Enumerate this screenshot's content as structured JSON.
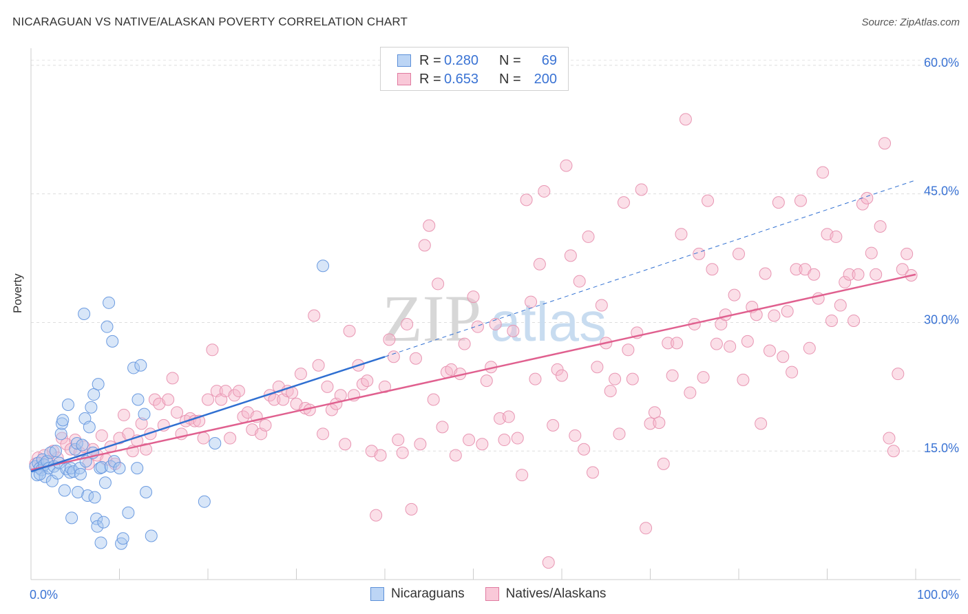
{
  "header": {
    "title": "NICARAGUAN VS NATIVE/ALASKAN POVERTY CORRELATION CHART",
    "source": "Source: ZipAtlas.com"
  },
  "watermark": {
    "zip": "ZIP",
    "atlas": "atlas"
  },
  "legend": {
    "r_label": "R =",
    "n_label": "N =",
    "series": [
      {
        "name": "Nicaraguans",
        "r": "0.280",
        "n": "69",
        "fill": "#a8c8f0",
        "stroke": "#5b8fd8"
      },
      {
        "name": "Natives/Alaskans",
        "r": "0.653",
        "n": "200",
        "fill": "#f7b8cc",
        "stroke": "#e07aa0"
      }
    ]
  },
  "colors": {
    "blue_line": "#2f6fd1",
    "pink_line": "#e0608f",
    "axis_text": "#3a73d4",
    "grid": "#dddddd"
  },
  "chart_data": {
    "type": "scatter",
    "title": "NICARAGUAN VS NATIVE/ALASKAN POVERTY CORRELATION CHART",
    "xlabel": "",
    "ylabel": "Poverty",
    "xlim": [
      0,
      100
    ],
    "ylim": [
      0,
      62
    ],
    "x_tick_labels": [
      "0.0%",
      "100.0%"
    ],
    "y_ticks": [
      15,
      30,
      45,
      60
    ],
    "y_tick_labels": [
      "15.0%",
      "30.0%",
      "45.0%",
      "60.0%"
    ],
    "grid": true,
    "legend_position": "top-center",
    "series": [
      {
        "name": "Nicaraguans",
        "r": 0.28,
        "n": 69,
        "trend": {
          "x0": 0,
          "y0": 12.6,
          "x1": 40,
          "y1": 26.0,
          "dashed_to_x": 100,
          "dashed_to_y": 46.6
        },
        "points": [
          [
            0.5,
            13.2
          ],
          [
            0.7,
            12.2
          ],
          [
            0.8,
            13.6
          ],
          [
            1.0,
            13.0
          ],
          [
            1.2,
            12.8
          ],
          [
            1.3,
            14.0
          ],
          [
            1.5,
            13.4
          ],
          [
            1.6,
            12.0
          ],
          [
            1.8,
            13.8
          ],
          [
            2.0,
            13.0
          ],
          [
            2.2,
            14.8
          ],
          [
            2.4,
            11.5
          ],
          [
            2.6,
            13.2
          ],
          [
            2.8,
            15.0
          ],
          [
            3.0,
            12.4
          ],
          [
            3.2,
            13.6
          ],
          [
            3.4,
            17.0
          ],
          [
            3.5,
            18.2
          ],
          [
            3.6,
            18.6
          ],
          [
            3.8,
            10.4
          ],
          [
            4.0,
            12.9
          ],
          [
            4.2,
            20.4
          ],
          [
            4.4,
            12.5
          ],
          [
            4.5,
            13.0
          ],
          [
            4.6,
            7.2
          ],
          [
            4.8,
            12.6
          ],
          [
            5.0,
            15.2
          ],
          [
            5.2,
            15.9
          ],
          [
            5.3,
            10.2
          ],
          [
            5.5,
            13.0
          ],
          [
            5.6,
            12.3
          ],
          [
            5.8,
            15.7
          ],
          [
            6.0,
            31.0
          ],
          [
            6.1,
            18.8
          ],
          [
            6.2,
            13.8
          ],
          [
            6.4,
            9.8
          ],
          [
            6.6,
            17.8
          ],
          [
            6.8,
            20.1
          ],
          [
            7.0,
            14.8
          ],
          [
            7.1,
            21.6
          ],
          [
            7.2,
            9.6
          ],
          [
            7.4,
            7.1
          ],
          [
            7.5,
            6.2
          ],
          [
            7.6,
            22.8
          ],
          [
            7.8,
            13.0
          ],
          [
            7.9,
            4.3
          ],
          [
            8.0,
            13.1
          ],
          [
            8.2,
            6.7
          ],
          [
            8.4,
            11.3
          ],
          [
            8.6,
            29.5
          ],
          [
            8.8,
            32.3
          ],
          [
            9.0,
            13.2
          ],
          [
            9.2,
            27.8
          ],
          [
            9.4,
            13.8
          ],
          [
            10.0,
            13.0
          ],
          [
            10.2,
            4.2
          ],
          [
            10.4,
            4.8
          ],
          [
            11.0,
            7.8
          ],
          [
            11.6,
            24.7
          ],
          [
            12.0,
            13.0
          ],
          [
            12.1,
            21.0
          ],
          [
            12.4,
            25.0
          ],
          [
            12.8,
            19.3
          ],
          [
            13.0,
            10.2
          ],
          [
            13.6,
            5.1
          ],
          [
            19.6,
            9.1
          ],
          [
            20.8,
            15.9
          ],
          [
            33.0,
            36.6
          ],
          [
            1.0,
            12.3
          ]
        ]
      },
      {
        "name": "Natives/Alaskans",
        "r": 0.653,
        "n": 200,
        "trend": {
          "x0": 0,
          "y0": 12.8,
          "x1": 100,
          "y1": 35.6
        },
        "points": [
          [
            0.5,
            13.5
          ],
          [
            0.8,
            14.2
          ],
          [
            1.0,
            13.0
          ],
          [
            1.5,
            14.5
          ],
          [
            2.0,
            13.8
          ],
          [
            2.5,
            15.0
          ],
          [
            3.0,
            14.2
          ],
          [
            3.5,
            16.5
          ],
          [
            4.0,
            15.8
          ],
          [
            4.5,
            15.2
          ],
          [
            5.0,
            16.3
          ],
          [
            5.5,
            14.8
          ],
          [
            6.0,
            15.5
          ],
          [
            6.5,
            13.5
          ],
          [
            7.0,
            15.2
          ],
          [
            7.5,
            14.5
          ],
          [
            8.0,
            16.8
          ],
          [
            8.5,
            14.0
          ],
          [
            9.0,
            15.5
          ],
          [
            9.5,
            13.5
          ],
          [
            10.0,
            16.5
          ],
          [
            10.5,
            19.2
          ],
          [
            11.0,
            17.0
          ],
          [
            11.5,
            15.0
          ],
          [
            12.0,
            16.2
          ],
          [
            12.5,
            18.2
          ],
          [
            13.0,
            15.2
          ],
          [
            13.5,
            17.0
          ],
          [
            14.0,
            21.0
          ],
          [
            14.5,
            20.5
          ],
          [
            15.0,
            18.0
          ],
          [
            15.5,
            21.0
          ],
          [
            16.0,
            23.5
          ],
          [
            16.5,
            19.5
          ],
          [
            17.0,
            17.0
          ],
          [
            17.5,
            18.5
          ],
          [
            18.0,
            18.8
          ],
          [
            18.5,
            18.5
          ],
          [
            19.0,
            18.5
          ],
          [
            19.5,
            16.5
          ],
          [
            20.0,
            21.0
          ],
          [
            20.5,
            26.8
          ],
          [
            21.0,
            22.0
          ],
          [
            21.5,
            21.0
          ],
          [
            22.0,
            22.0
          ],
          [
            22.5,
            16.5
          ],
          [
            23.0,
            21.5
          ],
          [
            23.5,
            22.0
          ],
          [
            24.0,
            19.0
          ],
          [
            24.5,
            19.5
          ],
          [
            25.0,
            17.5
          ],
          [
            25.5,
            19.0
          ],
          [
            26.0,
            17.0
          ],
          [
            26.5,
            18.0
          ],
          [
            27.0,
            21.5
          ],
          [
            27.5,
            21.0
          ],
          [
            28.0,
            22.5
          ],
          [
            28.5,
            21.0
          ],
          [
            29.0,
            22.0
          ],
          [
            29.5,
            21.8
          ],
          [
            30.0,
            20.5
          ],
          [
            30.5,
            24.0
          ],
          [
            31.0,
            20.0
          ],
          [
            31.5,
            19.8
          ],
          [
            32.0,
            30.8
          ],
          [
            32.5,
            25.0
          ],
          [
            33.0,
            17.0
          ],
          [
            33.5,
            22.5
          ],
          [
            34.0,
            19.8
          ],
          [
            34.5,
            20.5
          ],
          [
            35.0,
            21.5
          ],
          [
            35.5,
            15.8
          ],
          [
            36.0,
            29.0
          ],
          [
            36.5,
            21.5
          ],
          [
            37.0,
            25.0
          ],
          [
            37.5,
            22.8
          ],
          [
            38.0,
            23.2
          ],
          [
            38.5,
            15.0
          ],
          [
            39.0,
            7.5
          ],
          [
            39.5,
            14.5
          ],
          [
            40.0,
            22.5
          ],
          [
            40.5,
            28.0
          ],
          [
            41.0,
            26.0
          ],
          [
            41.5,
            16.3
          ],
          [
            42.0,
            14.8
          ],
          [
            42.5,
            29.8
          ],
          [
            43.0,
            8.2
          ],
          [
            43.5,
            25.8
          ],
          [
            44.0,
            15.8
          ],
          [
            44.5,
            39.0
          ],
          [
            45.0,
            41.3
          ],
          [
            45.5,
            21.0
          ],
          [
            46.0,
            34.5
          ],
          [
            46.5,
            17.8
          ],
          [
            47.0,
            24.2
          ],
          [
            47.5,
            24.5
          ],
          [
            48.0,
            14.5
          ],
          [
            48.5,
            24.0
          ],
          [
            49.0,
            27.5
          ],
          [
            49.5,
            16.3
          ],
          [
            50.0,
            33.0
          ],
          [
            50.5,
            29.5
          ],
          [
            51.0,
            15.8
          ],
          [
            51.5,
            23.2
          ],
          [
            52.0,
            24.8
          ],
          [
            52.5,
            29.8
          ],
          [
            53.0,
            18.8
          ],
          [
            53.5,
            16.3
          ],
          [
            54.0,
            19.0
          ],
          [
            54.5,
            29.0
          ],
          [
            55.0,
            16.5
          ],
          [
            55.5,
            12.2
          ],
          [
            56.0,
            44.3
          ],
          [
            56.5,
            32.4
          ],
          [
            57.0,
            23.4
          ],
          [
            57.5,
            36.8
          ],
          [
            58.0,
            45.3
          ],
          [
            58.5,
            2.0
          ],
          [
            59.0,
            18.0
          ],
          [
            59.5,
            24.5
          ],
          [
            60.0,
            23.8
          ],
          [
            60.5,
            48.3
          ],
          [
            61.0,
            37.8
          ],
          [
            61.5,
            16.8
          ],
          [
            62.0,
            34.8
          ],
          [
            62.5,
            15.2
          ],
          [
            63.0,
            40.0
          ],
          [
            63.5,
            12.5
          ],
          [
            64.0,
            24.8
          ],
          [
            64.5,
            32.0
          ],
          [
            65.0,
            27.6
          ],
          [
            65.5,
            22.0
          ],
          [
            66.0,
            23.4
          ],
          [
            66.5,
            17.0
          ],
          [
            67.0,
            44.0
          ],
          [
            67.5,
            26.8
          ],
          [
            68.0,
            23.4
          ],
          [
            68.5,
            28.8
          ],
          [
            69.0,
            45.5
          ],
          [
            69.5,
            6.0
          ],
          [
            70.0,
            18.2
          ],
          [
            70.5,
            19.5
          ],
          [
            71.0,
            18.3
          ],
          [
            71.5,
            13.5
          ],
          [
            72.0,
            27.6
          ],
          [
            72.5,
            23.8
          ],
          [
            73.0,
            27.6
          ],
          [
            73.5,
            40.3
          ],
          [
            74.0,
            53.7
          ],
          [
            74.5,
            21.8
          ],
          [
            75.0,
            29.8
          ],
          [
            75.5,
            38.0
          ],
          [
            76.0,
            23.6
          ],
          [
            76.5,
            44.2
          ],
          [
            77.0,
            36.2
          ],
          [
            77.5,
            27.5
          ],
          [
            78.0,
            29.8
          ],
          [
            78.5,
            30.9
          ],
          [
            79.0,
            27.2
          ],
          [
            79.5,
            33.2
          ],
          [
            80.0,
            38.0
          ],
          [
            80.5,
            23.3
          ],
          [
            81.0,
            27.8
          ],
          [
            81.5,
            31.8
          ],
          [
            82.0,
            30.9
          ],
          [
            82.5,
            18.2
          ],
          [
            83.0,
            35.7
          ],
          [
            83.5,
            26.7
          ],
          [
            84.0,
            30.8
          ],
          [
            84.5,
            44.0
          ],
          [
            85.0,
            26.0
          ],
          [
            85.5,
            31.3
          ],
          [
            86.0,
            24.2
          ],
          [
            86.5,
            36.2
          ],
          [
            87.0,
            44.2
          ],
          [
            87.5,
            36.2
          ],
          [
            88.0,
            27.0
          ],
          [
            88.5,
            35.6
          ],
          [
            89.0,
            32.8
          ],
          [
            89.5,
            47.5
          ],
          [
            90.0,
            40.3
          ],
          [
            90.5,
            30.2
          ],
          [
            91.0,
            40.0
          ],
          [
            91.5,
            32.0
          ],
          [
            92.0,
            34.7
          ],
          [
            92.5,
            35.6
          ],
          [
            93.0,
            30.2
          ],
          [
            93.5,
            35.6
          ],
          [
            94.0,
            43.8
          ],
          [
            94.5,
            44.5
          ],
          [
            95.0,
            38.1
          ],
          [
            95.5,
            35.6
          ],
          [
            96.0,
            41.2
          ],
          [
            96.5,
            50.9
          ],
          [
            97.0,
            16.5
          ],
          [
            97.5,
            15.0
          ],
          [
            98.0,
            24.0
          ],
          [
            98.5,
            36.2
          ],
          [
            99.0,
            38.0
          ],
          [
            99.5,
            35.5
          ]
        ]
      }
    ]
  }
}
